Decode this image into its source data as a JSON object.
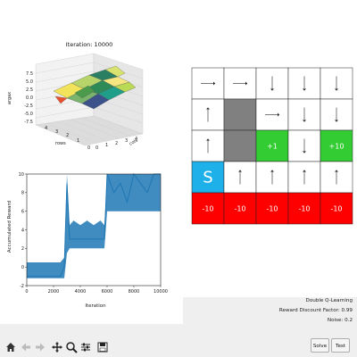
{
  "surface_plot": {
    "title": "Iteration: 10000",
    "zlabel": "argax",
    "xlabel": "cols",
    "ylabel": "rows",
    "z_ticks": [
      "7.5",
      "5.0",
      "2.5",
      "0.0",
      "-2.5",
      "-5.0",
      "-7.5"
    ],
    "row_ticks": [
      "4",
      "3",
      "2",
      "1",
      "0"
    ],
    "col_ticks": [
      "0",
      "1",
      "2",
      "3",
      "4"
    ]
  },
  "chart_data": {
    "type": "line",
    "xlabel": "Iteration",
    "ylabel": "Accumulated Reward",
    "xlim": [
      0,
      10000
    ],
    "ylim": [
      -2,
      10
    ],
    "x_ticks": [
      0,
      2000,
      4000,
      6000,
      8000,
      10000
    ],
    "y_ticks": [
      -2,
      0,
      2,
      4,
      6,
      8,
      10
    ],
    "x": [
      0,
      500,
      1000,
      1500,
      2000,
      2500,
      2800,
      3000,
      3200,
      3500,
      4000,
      4500,
      5000,
      5500,
      5800,
      6000,
      6500,
      7000,
      7500,
      8000,
      8500,
      9000,
      9500,
      10000
    ],
    "series": [
      {
        "values": [
          -1,
          -1,
          -1,
          -1,
          -1,
          -1,
          0,
          9,
          3,
          3,
          3,
          3,
          3,
          3,
          3,
          10,
          8,
          9,
          7,
          10,
          9,
          8,
          10,
          10
        ]
      }
    ],
    "band_low": [
      -1.2,
      -1.2,
      -1.2,
      -1.2,
      -1.2,
      -1.2,
      -1.2,
      1.5,
      2.0,
      2.0,
      2.0,
      2.0,
      2.0,
      2.0,
      2.0,
      6.0,
      6.0,
      6.0,
      6.0,
      6.0,
      6.0,
      6.0,
      6.0,
      6.0
    ],
    "band_high": [
      0.5,
      0.5,
      0.5,
      0.5,
      0.5,
      0.5,
      1.0,
      10.0,
      4.5,
      5.0,
      4.5,
      5.0,
      4.5,
      5.0,
      4.5,
      10.0,
      10.0,
      10.0,
      10.0,
      10.0,
      10.0,
      10.0,
      10.0,
      10.0
    ]
  },
  "grid": {
    "cells": [
      [
        "→",
        "→",
        "↓",
        "↓",
        "↓"
      ],
      [
        "↑",
        "",
        "→",
        "↓",
        "↓"
      ],
      [
        "↑",
        "",
        "+1",
        "↓",
        "+10"
      ],
      [
        "S",
        "↑",
        "↑",
        "↑",
        "↑"
      ],
      [
        "-10",
        "-10",
        "-10",
        "-10",
        "-10"
      ]
    ],
    "colors": {
      "wall": "#808080",
      "positive": "#33cc33",
      "start": "#1eb0e8",
      "negative": "#ff0000",
      "empty": "#ffffff"
    }
  },
  "status": {
    "algorithm": "Double Q-Learning",
    "discount": "Reward Discount Factor: 0.99",
    "noise": "Noise: 0.2"
  },
  "buttons": {
    "solve": "Solve",
    "test": "Test"
  },
  "toolbar": {
    "icons": [
      "home-icon",
      "back-arrow-icon",
      "forward-arrow-icon",
      "pan-icon",
      "zoom-icon",
      "configure-icon",
      "save-icon"
    ]
  }
}
